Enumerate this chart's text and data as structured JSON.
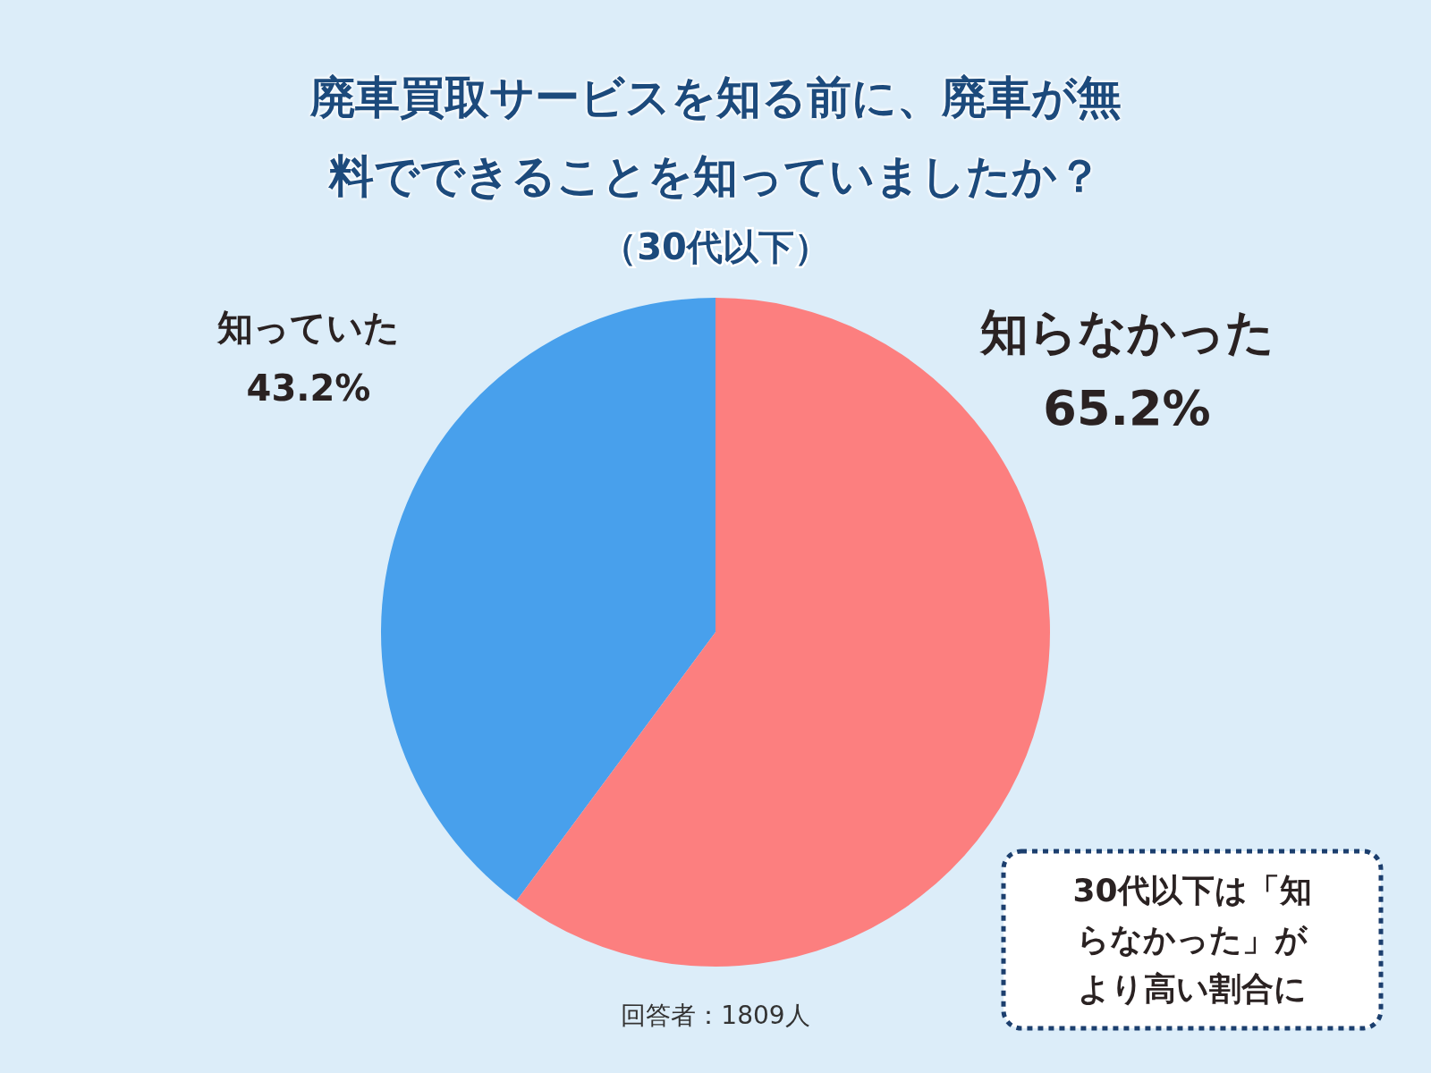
{
  "chart_data": {
    "type": "pie",
    "title": "廃車買取サービスを知る前に、廃車が無料でできることを知っていましたか？",
    "subtitle": "（30代以下）",
    "categories": [
      "知っていた",
      "知らなかった"
    ],
    "values": [
      43.2,
      65.2
    ],
    "colors": [
      "#48a0ec",
      "#fc7f7f"
    ],
    "value_labels": [
      "43.2%",
      "65.2%"
    ],
    "annotations": [
      "30代以下は「知らなかった」がより高い割合に",
      "回答者：1809人"
    ]
  }
}
